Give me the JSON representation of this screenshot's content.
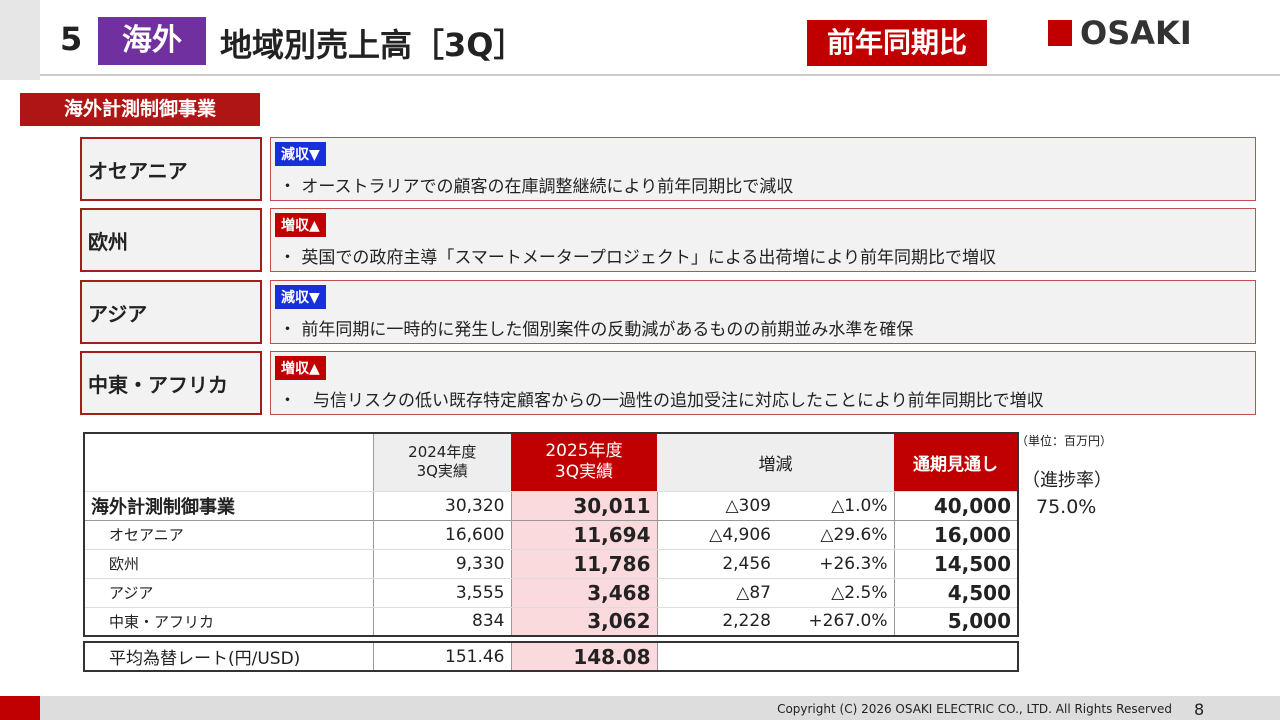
{
  "header": {
    "number": "5",
    "tag": "海外",
    "title": "地域別売上高［3Q］",
    "badge": "前年同期比",
    "logo": "OSAKI"
  },
  "section": "海外計測制御事業",
  "regions": [
    {
      "name": "オセアニア",
      "status": "減収▼",
      "comment": "・ オーストラリアでの顧客の在庫調整継続により前年同期比で減収"
    },
    {
      "name": "欧州",
      "status": "増収▲",
      "comment": "・ 英国での政府主導「スマートメータープロジェクト」による出荷増により前年同期比で増収"
    },
    {
      "name": "アジア",
      "status": "減収▼",
      "comment": "・ 前年同期に一時的に発生した個別案件の反動減があるものの前期並み水準を確保"
    },
    {
      "name": "中東・アフリカ",
      "status": "増収▲",
      "comment": "・　与信リスクの低い既存特定顧客からの一過性の追加受注に対応したことにより前年同期比で増収"
    }
  ],
  "table": {
    "headers": {
      "prev": [
        "2024年度",
        "3Q実績"
      ],
      "curr": [
        "2025年度",
        "3Q実績"
      ],
      "diff": "増減",
      "outlook": "通期見通し"
    },
    "rows": [
      [
        "海外計測制御事業",
        "30,320",
        "30,011",
        "△309",
        "△1.0%",
        "40,000"
      ],
      [
        "オセアニア",
        "16,600",
        "11,694",
        "△4,906",
        "△29.6%",
        "16,000"
      ],
      [
        "欧州",
        "9,330",
        "11,786",
        "2,456",
        "+26.3%",
        "14,500"
      ],
      [
        "アジア",
        "3,555",
        "3,468",
        "△87",
        "△2.5%",
        "4,500"
      ],
      [
        "中東・アフリカ",
        "834",
        "3,062",
        "2,228",
        "+267.0%",
        "5,000"
      ]
    ],
    "rate": [
      "平均為替レート(円/USD)",
      "151.46",
      "148.08"
    ]
  },
  "unit": "（単位：百万円）",
  "progress_label": "（進捗率）",
  "progress": "75.0%",
  "footer": {
    "copyright": "Copyright (C) 2026 OSAKI ELECTRIC CO., LTD. All Rights Reserved",
    "page": "8"
  }
}
